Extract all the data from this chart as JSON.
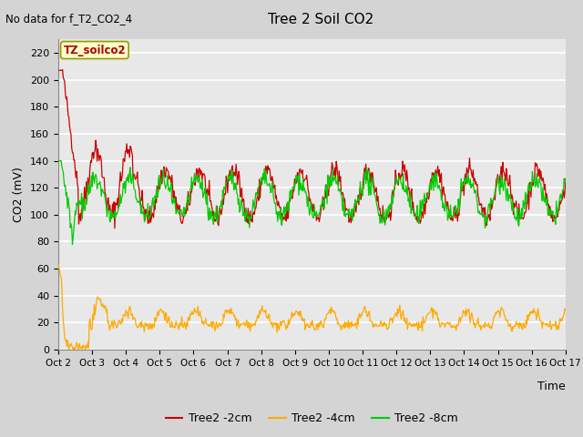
{
  "title": "Tree 2 Soil CO2",
  "subtitle": "No data for f_T2_CO2_4",
  "ylabel": "CO2 (mV)",
  "xlabel": "Time",
  "plot_label": "TZ_soilco2",
  "fig_bg_color": "#d4d4d4",
  "plot_bg_color": "#e8e8e8",
  "line_colors": {
    "red": "#cc0000",
    "orange": "#ffaa00",
    "green": "#00cc00"
  },
  "legend_entries": [
    "Tree2 -2cm",
    "Tree2 -4cm",
    "Tree2 -8cm"
  ],
  "ylim": [
    0,
    230
  ],
  "yticks": [
    0,
    20,
    40,
    60,
    80,
    100,
    120,
    140,
    160,
    180,
    200,
    220
  ],
  "num_points": 720,
  "days": 15
}
